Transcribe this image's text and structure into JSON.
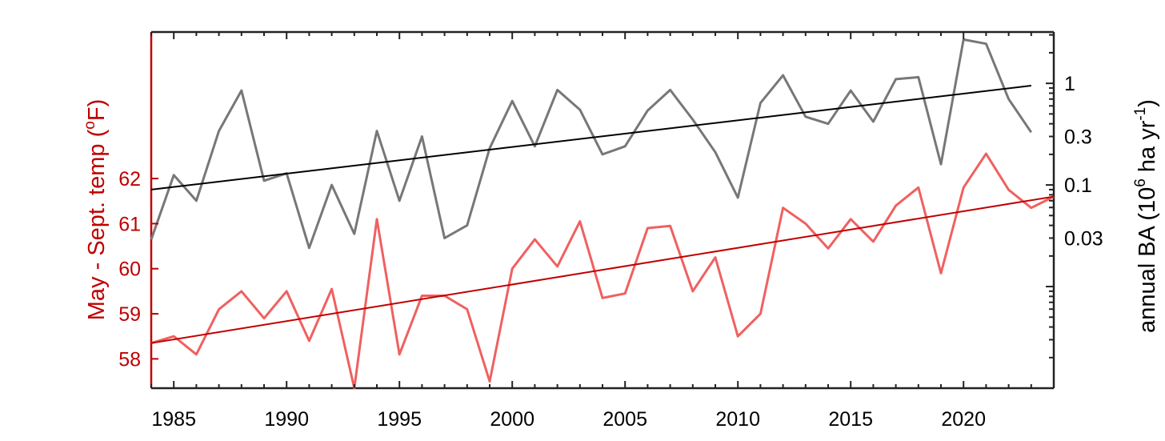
{
  "chart_data": {
    "type": "line",
    "title": "",
    "x_ticks": [
      "1985",
      "1990",
      "1995",
      "2000",
      "2005",
      "2010",
      "2015",
      "2020"
    ],
    "xlim": [
      1984,
      2024
    ],
    "left_axis": {
      "label_prefix": "May - Sept. temp (",
      "label_sup": "o",
      "label_suffix": "F)",
      "color": "#c00000",
      "ylim": [
        57.35,
        65.25
      ],
      "ticks": [
        "58",
        "59",
        "60",
        "61",
        "62"
      ]
    },
    "right_axis": {
      "label_prefix": "annual BA (10",
      "label_sup1": "6",
      "label_mid": " ha yr",
      "label_sup2": "-1",
      "label_suffix": ")",
      "scale": "log",
      "ylim": [
        0.001,
        3.2
      ],
      "ticks": [
        "0.03",
        "0.1",
        "0.3",
        "1"
      ]
    },
    "series": [
      {
        "axis": "left",
        "color": "#f06060",
        "x": [
          1984,
          1985,
          1986,
          1987,
          1988,
          1989,
          1990,
          1991,
          1992,
          1993,
          1994,
          1995,
          1996,
          1997,
          1998,
          1999,
          2000,
          2001,
          2002,
          2003,
          2004,
          2005,
          2006,
          2007,
          2008,
          2009,
          2010,
          2011,
          2012,
          2013,
          2014,
          2015,
          2016,
          2017,
          2018,
          2019,
          2020,
          2021,
          2022,
          2023,
          2024
        ],
        "y": [
          58.35,
          58.5,
          58.1,
          59.1,
          59.5,
          58.9,
          59.5,
          58.4,
          59.55,
          57.35,
          61.1,
          58.1,
          59.4,
          59.4,
          59.1,
          57.5,
          60.0,
          60.65,
          60.05,
          61.05,
          59.35,
          59.45,
          60.9,
          60.95,
          59.5,
          60.25,
          58.5,
          59.0,
          61.35,
          61.0,
          60.45,
          61.1,
          60.6,
          61.4,
          61.8,
          59.9,
          61.8,
          62.55,
          61.75,
          61.35,
          61.6
        ]
      },
      {
        "axis": "left",
        "color": "#c00000",
        "x": [
          1984,
          2024
        ],
        "y": [
          58.35,
          61.6
        ]
      },
      {
        "axis": "right",
        "color": "#777777",
        "x": [
          1984,
          1985,
          1986,
          1987,
          1988,
          1989,
          1990,
          1991,
          1992,
          1993,
          1994,
          1995,
          1996,
          1997,
          1998,
          1999,
          2000,
          2001,
          2002,
          2003,
          2004,
          2005,
          2006,
          2007,
          2008,
          2009,
          2010,
          2011,
          2012,
          2013,
          2014,
          2015,
          2016,
          2017,
          2018,
          2019,
          2020,
          2021,
          2022,
          2023
        ],
        "y": [
          0.029,
          0.125,
          0.07,
          0.34,
          0.85,
          0.11,
          0.13,
          0.024,
          0.1,
          0.033,
          0.34,
          0.07,
          0.3,
          0.03,
          0.04,
          0.23,
          0.67,
          0.24,
          0.86,
          0.55,
          0.2,
          0.24,
          0.54,
          0.86,
          0.44,
          0.21,
          0.075,
          0.64,
          1.2,
          0.47,
          0.4,
          0.85,
          0.42,
          1.1,
          1.15,
          0.16,
          2.7,
          2.45,
          0.7,
          0.33
        ]
      },
      {
        "axis": "right",
        "color": "#000000",
        "x": [
          1984,
          2023
        ],
        "y": [
          0.09,
          0.95
        ]
      }
    ],
    "grid": false,
    "legend": "none"
  }
}
